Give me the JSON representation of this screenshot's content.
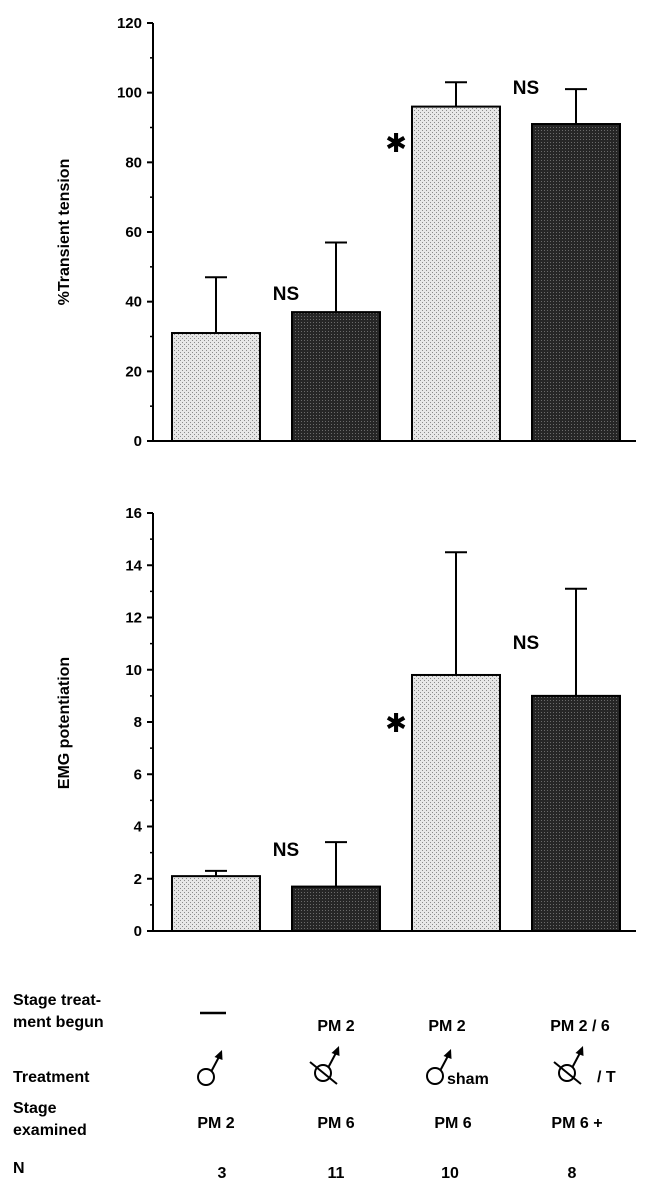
{
  "chart_data": [
    {
      "type": "bar",
      "ylabel": "%Transient tension",
      "ylim": [
        0,
        120
      ],
      "yticks": [
        0,
        20,
        40,
        60,
        80,
        100,
        120
      ],
      "values": [
        31,
        37,
        96,
        91
      ],
      "errors": [
        16,
        20,
        7,
        10
      ],
      "fills": [
        "light-stipple",
        "dark-stipple",
        "light-stipple",
        "dark-stipple"
      ],
      "annotations": [
        {
          "text": "NS",
          "between": [
            0,
            1
          ]
        },
        {
          "text": "✱",
          "between": [
            1,
            2
          ]
        },
        {
          "text": "NS",
          "between": [
            2,
            3
          ]
        }
      ]
    },
    {
      "type": "bar",
      "ylabel": "EMG potentiation",
      "ylim": [
        0,
        16
      ],
      "yticks": [
        0,
        2,
        4,
        6,
        8,
        10,
        12,
        14,
        16
      ],
      "values": [
        2.1,
        1.7,
        9.8,
        9.0
      ],
      "errors": [
        0.2,
        1.7,
        4.7,
        4.1
      ],
      "fills": [
        "light-stipple",
        "dark-stipple",
        "light-stipple",
        "dark-stipple"
      ],
      "annotations": [
        {
          "text": "NS",
          "between": [
            0,
            1
          ]
        },
        {
          "text": "✱",
          "between": [
            1,
            2
          ]
        },
        {
          "text": "NS",
          "between": [
            2,
            3
          ]
        }
      ]
    }
  ],
  "table": {
    "row_labels": {
      "stage_begun": [
        "Stage treat-",
        "ment begun"
      ],
      "treatment": "Treatment",
      "stage_examined": [
        "Stage",
        "examined"
      ],
      "n": "N"
    },
    "columns": [
      {
        "stage_begun": "—",
        "treatment_symbol": "male-icon",
        "treatment_suffix": "",
        "stage_examined": "PM  2",
        "n": "3"
      },
      {
        "stage_begun": "PM  2",
        "treatment_symbol": "castrated-male-icon",
        "treatment_suffix": "",
        "stage_examined": "PM  6",
        "n": "11"
      },
      {
        "stage_begun": "PM  2",
        "treatment_symbol": "male-icon",
        "treatment_suffix": "sham",
        "stage_examined": "PM  6",
        "n": "10"
      },
      {
        "stage_begun": "PM  2 / 6",
        "treatment_symbol": "castrated-male-icon",
        "treatment_suffix": "/ T",
        "stage_examined": "PM  6 +",
        "n": "8"
      }
    ]
  }
}
